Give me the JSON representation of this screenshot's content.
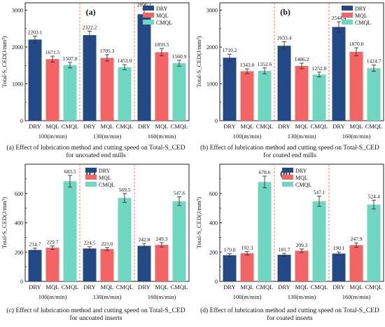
{
  "colors": {
    "DRY": "#234a87",
    "MQL": "#f46464",
    "CMQL": "#6fd6c0",
    "divider": "#ff6a6a"
  },
  "chart_data": [
    {
      "type": "bar",
      "panel": "(a)",
      "ylabel": "Total-S_CED(J/mm³)",
      "ylim": [
        0,
        3200
      ],
      "yticks": [
        0,
        1000,
        2000,
        3000
      ],
      "groups": [
        "100(m/min)",
        "130(m/min)",
        "160(m/min)"
      ],
      "categories": [
        "DRY",
        "MQL",
        "CMQL"
      ],
      "series": [
        {
          "name": "DRY",
          "values": [
            2203.1,
            2322.2,
            2890.1
          ],
          "errors": [
            95,
            110,
            150
          ]
        },
        {
          "name": "MQL",
          "values": [
            1671.5,
            1705.3,
            1859.5
          ],
          "errors": [
            80,
            85,
            100
          ]
        },
        {
          "name": "CMQL",
          "values": [
            1507.0,
            1453.0,
            1560.9
          ],
          "errors": [
            75,
            70,
            80
          ]
        }
      ],
      "labels": [
        [
          "2203.1",
          "2322.2",
          "2890.1"
        ],
        [
          "1671.5",
          "1705.3",
          "1859.5"
        ],
        [
          "1507.0",
          "1453.0",
          "1560.9"
        ]
      ],
      "caption": [
        "(a) Effect of lubrication method and cutting speed on Total-S_CED",
        "for uncoated end mills"
      ]
    },
    {
      "type": "bar",
      "panel": "(b)",
      "ylabel": "Total-S_CED(J/mm³)",
      "ylim": [
        0,
        3200
      ],
      "yticks": [
        0,
        1000,
        2000,
        3000
      ],
      "groups": [
        "100(m/min)",
        "130(m/min)",
        "160(m/min)"
      ],
      "categories": [
        "DRY",
        "MQL",
        "CMQL"
      ],
      "series": [
        {
          "name": "DRY",
          "values": [
            1710.2,
            2033.4,
            2544.4
          ],
          "errors": [
            95,
            110,
            140
          ]
        },
        {
          "name": "MQL",
          "values": [
            1343.0,
            1486.2,
            1870.0
          ],
          "errors": [
            65,
            75,
            110
          ]
        },
        {
          "name": "CMQL",
          "values": [
            1352.6,
            1252.8,
            1424.7
          ],
          "errors": [
            80,
            65,
            85
          ]
        }
      ],
      "labels": [
        [
          "1710.2",
          "2033.4",
          "2544.4"
        ],
        [
          "1343.0",
          "1486.2",
          "1870.0"
        ],
        [
          "1352.6",
          "1252.8",
          "1424.7"
        ]
      ],
      "caption": [
        "(b) Effect of lubrication method and cutting speed on Total-S_CED",
        "for coated end mills"
      ]
    },
    {
      "type": "bar",
      "panel": "(c)",
      "ylabel": "Total-S_CED(J/mm³)",
      "ylim": [
        0,
        800
      ],
      "yticks": [
        0,
        200,
        400,
        600
      ],
      "groups": [
        "100(m/min)",
        "130(m/min)",
        "160(m/min)"
      ],
      "categories": [
        "DRY",
        "MQL",
        "CMQL"
      ],
      "series": [
        {
          "name": "DRY",
          "values": [
            214.7,
            224.5,
            242.8
          ],
          "errors": [
            12,
            12,
            16
          ]
        },
        {
          "name": "MQL",
          "values": [
            229.7,
            221.0,
            249.3
          ],
          "errors": [
            12,
            10,
            15
          ]
        },
        {
          "name": "CMQL",
          "values": [
            683.5,
            569.5,
            547.6
          ],
          "errors": [
            40,
            30,
            30
          ]
        }
      ],
      "labels": [
        [
          "214.7",
          "224.5",
          "242.8"
        ],
        [
          "229.7",
          "221.0",
          "249.3"
        ],
        [
          "683.5",
          "569.5",
          "547.6"
        ]
      ],
      "caption": [
        "(c) Effect of lubrication method and cutting speed on Total-S_CED",
        "for uncoated inserts"
      ]
    },
    {
      "type": "bar",
      "panel": "(d)",
      "ylabel": "Total-S_CED(J/mm³)",
      "ylim": [
        0,
        800
      ],
      "yticks": [
        0,
        200,
        400,
        600
      ],
      "groups": [
        "100(m/min)",
        "130(m/min)",
        "160(m/min)"
      ],
      "categories": [
        "DRY",
        "MQL",
        "CMQL"
      ],
      "series": [
        {
          "name": "DRY",
          "values": [
            179.0,
            181.7,
            190.1
          ],
          "errors": [
            10,
            10,
            10
          ]
        },
        {
          "name": "MQL",
          "values": [
            192.3,
            209.3,
            247.9
          ],
          "errors": [
            12,
            12,
            15
          ]
        },
        {
          "name": "CMQL",
          "values": [
            678.6,
            547.1,
            524.4
          ],
          "errors": [
            40,
            35,
            30
          ]
        }
      ],
      "labels": [
        [
          "179.0",
          "181.7",
          "190.1"
        ],
        [
          "192.3",
          "209.3",
          "247.9"
        ],
        [
          "678.6",
          "547.1",
          "524.4"
        ]
      ],
      "caption": [
        "(d) Effect of lubrication method and cutting speed on Total-S_CED",
        "for coated inserts"
      ]
    }
  ]
}
